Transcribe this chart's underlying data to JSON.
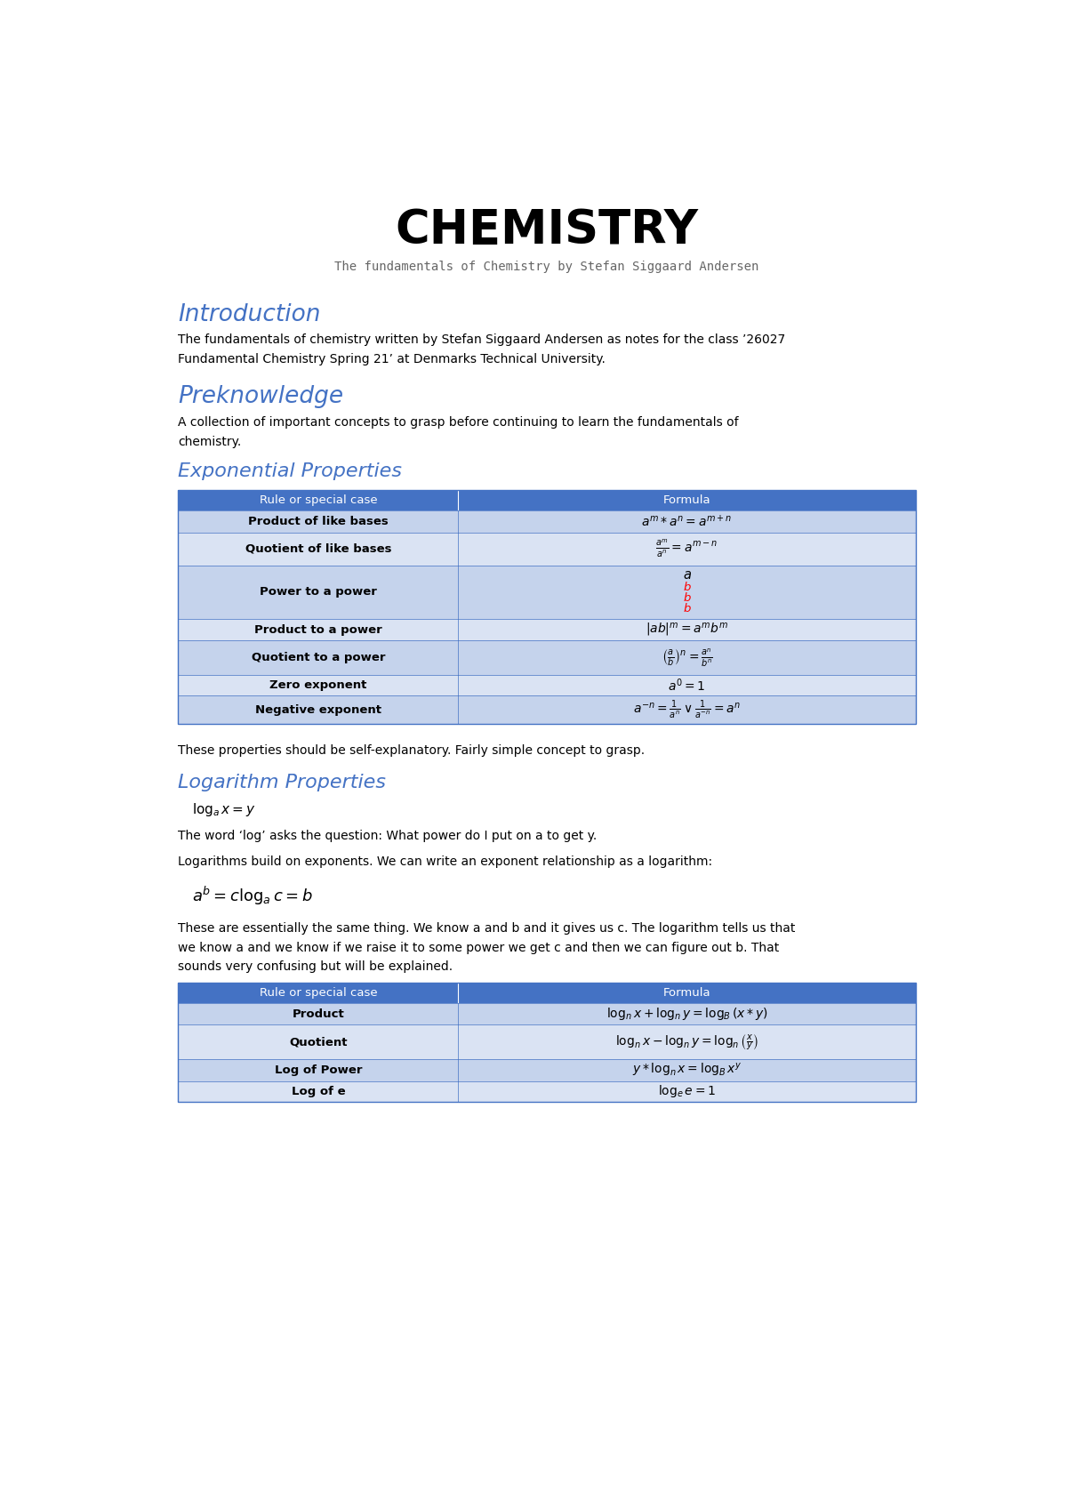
{
  "title": "CHEMISTRY",
  "subtitle": "The fundamentals of Chemistry by Stefan Siggaard Andersen",
  "section1_title": "Introduction",
  "section1_body": "The fundamentals of chemistry written by Stefan Siggaard Andersen as notes for the class ’26027\nFundamental Chemistry Spring 21’ at Denmarks Technical University.",
  "section2_title": "Preknowledge",
  "section2_body": "A collection of important concepts to grasp before continuing to learn the fundamentals of\nchemistry.",
  "section3_title": "Exponential Properties",
  "exp_table_header": [
    "Rule or special case",
    "Formula"
  ],
  "exp_table_rows": [
    [
      "Product of like bases",
      "$a^m*a^n=a^{m+n}$"
    ],
    [
      "Quotient of like bases",
      "$\\frac{a^m}{a^n}=a^{m-n}$"
    ],
    [
      "Power to a power",
      "power_to_power"
    ],
    [
      "Product to a power",
      "$|ab|^m=a^mb^m$"
    ],
    [
      "Quotient to a power",
      "$\\left(\\frac{a}{b}\\right)^n=\\frac{a^n}{b^n}$"
    ],
    [
      "Zero exponent",
      "$a^0=1$"
    ],
    [
      "Negative exponent",
      "$a^{-n}=\\frac{1}{a^n}\\vee\\frac{1}{a^{-n}}=a^n$"
    ]
  ],
  "exp_after_text": "These properties should be self-explanatory. Fairly simple concept to grasp.",
  "section4_title": "Logarithm Properties",
  "log_formula1": "$\\log_a x=y$",
  "log_text1": "The word ‘log’ asks the question: What power do I put on a to get y.",
  "log_text2": "Logarithms build on exponents. We can write an exponent relationship as a logarithm:",
  "log_formula2": "$a^b=c\\log_a c=b$",
  "log_text3": "These are essentially the same thing. We know a and b and it gives us c. The logarithm tells us that\nwe know a and we know if we raise it to some power we get c and then we can figure out b. That\nsounds very confusing but will be explained.",
  "log_table_header": [
    "Rule or special case",
    "Formula"
  ],
  "log_table_rows": [
    [
      "Product",
      "$\\log_n x+\\log_n y=\\log_B(x*y)$"
    ],
    [
      "Quotient",
      "$\\log_n x-\\log_n y=\\log_n\\left(\\frac{x}{y}\\right)$"
    ],
    [
      "Log of Power",
      "$y*\\log_n x=\\log_B x^y$"
    ],
    [
      "Log of e",
      "$\\log_e e=1$"
    ]
  ],
  "header_bg": "#4472C4",
  "header_fg": "#FFFFFF",
  "row_bg_even": "#C5D3EC",
  "row_bg_odd": "#DAE3F3",
  "section_color": "#4472C4",
  "text_color": "#000000",
  "bg_color": "#FFFFFF",
  "table_border": "#4472C4",
  "subtitle_color": "#666666"
}
